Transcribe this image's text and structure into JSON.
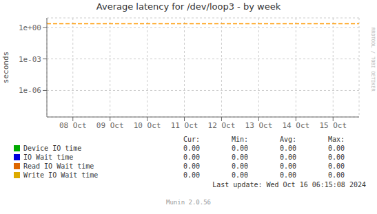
{
  "chart_data": {
    "type": "line",
    "title": "Average latency for /dev/loop3 - by week",
    "ylabel": "seconds",
    "log": "y",
    "grid": true,
    "xlim": [
      7.3,
      15.7
    ],
    "xticks": [
      {
        "value": 8,
        "label": "08 Oct"
      },
      {
        "value": 9,
        "label": "09 Oct"
      },
      {
        "value": 10,
        "label": "10 Oct"
      },
      {
        "value": 11,
        "label": "11 Oct"
      },
      {
        "value": 12,
        "label": "12 Oct"
      },
      {
        "value": 13,
        "label": "13 Oct"
      },
      {
        "value": 14,
        "label": "14 Oct"
      },
      {
        "value": 15,
        "label": "15 Oct"
      }
    ],
    "ylim": [
      3e-09,
      8
    ],
    "yticks": [
      {
        "value": 1e-06,
        "label": "1e-06"
      },
      {
        "value": 0.001,
        "label": "1e-03"
      },
      {
        "value": 1,
        "label": "1e+00"
      }
    ],
    "reference_lines": [
      {
        "y": 2.2,
        "color": "#ff9900",
        "line_style": "dashed"
      }
    ],
    "table": {
      "columns": [
        "Cur:",
        "Min:",
        "Avg:",
        "Max:"
      ],
      "rows": [
        {
          "name": "Device IO time",
          "color": "#00aa00",
          "values": [
            0,
            0,
            0,
            0
          ],
          "value_labels": [
            "0.00",
            "0.00",
            "0.00",
            "0.00"
          ]
        },
        {
          "name": "IO Wait time",
          "color": "#0000dd",
          "values": [
            0,
            0,
            0,
            0
          ],
          "value_labels": [
            "0.00",
            "0.00",
            "0.00",
            "0.00"
          ]
        },
        {
          "name": "Read IO Wait time",
          "color": "#dd6600",
          "values": [
            0,
            0,
            0,
            0
          ],
          "value_labels": [
            "0.00",
            "0.00",
            "0.00",
            "0.00"
          ]
        },
        {
          "name": "Write IO Wait time",
          "color": "#ddaa00",
          "values": [
            0,
            0,
            0,
            0
          ],
          "value_labels": [
            "0.00",
            "0.00",
            "0.00",
            "0.00"
          ]
        }
      ]
    },
    "annotations": [
      "Last update: Wed Oct 16 06:15:08 2024",
      "Munin 2.0.56",
      "RRDTOOL / TOBI OETIKER"
    ]
  }
}
